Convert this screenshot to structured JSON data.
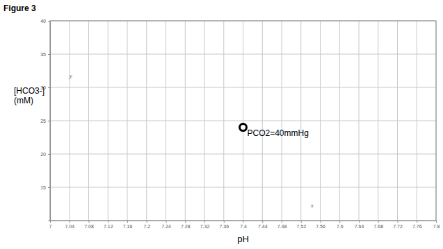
{
  "chart_data": {
    "type": "scatter",
    "title": "Figure 3",
    "xlabel": "pH",
    "ylabel": "[HCO3-] (mM)",
    "series": [
      {
        "name": "PCO2=40mmHg",
        "x": [
          7.4
        ],
        "values": [
          24
        ],
        "color": "#000000",
        "marker": "open-circle"
      }
    ],
    "xlim": [
      7,
      7.8
    ],
    "xticks": [
      7,
      7.04,
      7.08,
      7.12,
      7.16,
      7.2,
      7.24,
      7.28,
      7.32,
      7.36,
      7.4,
      7.44,
      7.48,
      7.52,
      7.56,
      7.6,
      7.64,
      7.68,
      7.72,
      7.76,
      7.8
    ],
    "ylim": [
      10,
      40
    ],
    "yticks": [
      15,
      20,
      25,
      30,
      35,
      40
    ],
    "grid": true,
    "annotations": [
      {
        "text": "y",
        "x": 7.04,
        "y": 31.5
      },
      {
        "text": "x",
        "x": 7.54,
        "y": 12
      }
    ]
  }
}
